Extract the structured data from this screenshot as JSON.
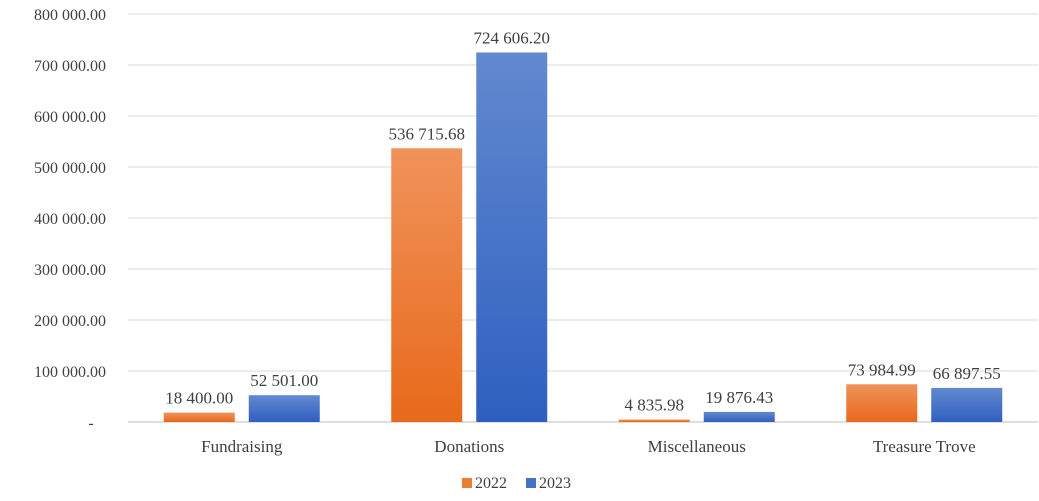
{
  "chart_data": {
    "type": "bar",
    "categories": [
      "Fundraising",
      "Donations",
      "Miscellaneous",
      "Treasure Trove"
    ],
    "series": [
      {
        "name": "2022",
        "color": "#ED7D31",
        "values": [
          18400.0,
          536715.68,
          4835.98,
          73984.99
        ],
        "labels": [
          "18 400.00",
          "536 715.68",
          "4 835.98",
          "73 984.99"
        ]
      },
      {
        "name": "2023",
        "color": "#4472C4",
        "values": [
          52501.0,
          724606.2,
          19876.43,
          66897.55
        ],
        "labels": [
          "52 501.00",
          "724 606.20",
          "19 876.43",
          "66 897.55"
        ]
      }
    ],
    "yticks": [
      0,
      100000,
      200000,
      300000,
      400000,
      500000,
      600000,
      700000,
      800000
    ],
    "ytick_labels": [
      "-",
      "100 000.00",
      "200 000.00",
      "300 000.00",
      "400 000.00",
      "500 000.00",
      "600 000.00",
      "700 000.00",
      "800 000.00"
    ],
    "ylim": [
      0,
      800000
    ],
    "grid": true,
    "legend": "bottom-center"
  }
}
